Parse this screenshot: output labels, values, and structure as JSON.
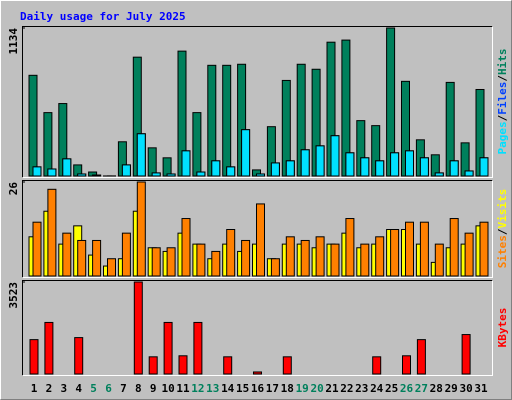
{
  "chart_data": [
    {
      "type": "bar",
      "title": "Daily usage for July 2025",
      "series": [
        {
          "name": "Hits",
          "color": "#00805c",
          "values": [
            774,
            490,
            559,
            92,
            38,
            8,
            268,
            912,
            222,
            146,
            958,
            490,
            850,
            850,
            858,
            54,
            383,
            735,
            858,
            820,
            1026,
            1042,
            429,
            391,
            1134,
            728,
            283,
            169,
            720,
            260,
            666
          ]
        },
        {
          "name": "Files",
          "color": "#0040ff",
          "values": [
            77,
            61,
            138,
            23,
            15,
            8,
            92,
            329,
            31,
            23,
            199,
            38,
            123,
            77,
            360,
            23,
            107,
            123,
            207,
            237,
            314,
            184,
            146,
            123,
            184,
            199,
            146,
            31,
            123,
            46,
            146
          ]
        },
        {
          "name": "Pages",
          "color": "#00e0ff",
          "values": [
            77,
            61,
            138,
            23,
            15,
            8,
            92,
            329,
            31,
            23,
            199,
            38,
            123,
            77,
            360,
            23,
            107,
            123,
            207,
            237,
            314,
            184,
            146,
            123,
            184,
            199,
            146,
            31,
            123,
            46,
            146
          ]
        }
      ],
      "legend_separator": "/",
      "ylim": [
        0,
        1134
      ],
      "yticks": [
        1134
      ]
    },
    {
      "type": "bar",
      "series": [
        {
          "name": "Visits",
          "color": "#ffff00",
          "values": [
            11,
            18,
            9,
            14,
            6,
            3,
            5,
            18,
            8,
            7,
            12,
            9,
            5,
            9,
            7,
            9,
            5,
            9,
            9,
            8,
            9,
            12,
            8,
            9,
            13,
            13,
            9,
            4,
            8,
            9,
            14
          ]
        },
        {
          "name": "Sites",
          "color": "#ff8000",
          "values": [
            15,
            24,
            12,
            10,
            10,
            5,
            12,
            26,
            8,
            8,
            16,
            9,
            7,
            13,
            10,
            20,
            5,
            11,
            10,
            11,
            9,
            16,
            9,
            11,
            13,
            15,
            15,
            9,
            16,
            12,
            15
          ]
        }
      ],
      "legend_separator": "/",
      "ylim": [
        0,
        26
      ],
      "yticks": [
        26
      ]
    },
    {
      "type": "bar",
      "categories": [
        "1",
        "2",
        "3",
        "4",
        "5",
        "6",
        "7",
        "8",
        "9",
        "10",
        "11",
        "12",
        "13",
        "14",
        "15",
        "16",
        "17",
        "18",
        "19",
        "20",
        "21",
        "22",
        "23",
        "24",
        "25",
        "26",
        "27",
        "28",
        "29",
        "30",
        "31"
      ],
      "category_colors": [
        "#000000",
        "#000000",
        "#000000",
        "#000000",
        "#00805c",
        "#00805c",
        "#000000",
        "#000000",
        "#000000",
        "#000000",
        "#000000",
        "#00805c",
        "#00805c",
        "#000000",
        "#000000",
        "#000000",
        "#000000",
        "#000000",
        "#00805c",
        "#00805c",
        "#000000",
        "#000000",
        "#000000",
        "#000000",
        "#000000",
        "#00805c",
        "#00805c",
        "#000000",
        "#000000",
        "#000000",
        "#000000"
      ],
      "series": [
        {
          "name": "KBytes",
          "color": "#ff0000",
          "values": [
            1340,
            1991,
            0,
            1417,
            0,
            0,
            0,
            3523,
            689,
            1991,
            728,
            1991,
            0,
            689,
            0,
            115,
            0,
            689,
            0,
            0,
            0,
            0,
            0,
            689,
            0,
            728,
            1340,
            0,
            0,
            1532,
            0
          ]
        }
      ],
      "ylim": [
        0,
        3523
      ],
      "yticks": [
        3523
      ]
    }
  ]
}
